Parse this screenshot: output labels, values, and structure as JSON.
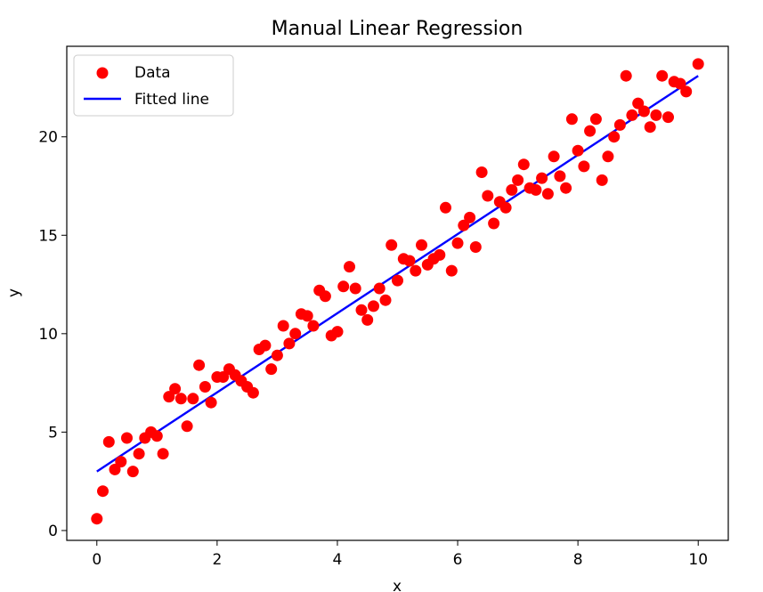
{
  "chart_data": {
    "type": "scatter",
    "title": "Manual Linear Regression",
    "xlabel": "x",
    "ylabel": "y",
    "xlim": [
      -0.5,
      10.5
    ],
    "ylim": [
      -0.5,
      24.6
    ],
    "xticks": [
      0,
      2,
      4,
      6,
      8,
      10
    ],
    "xtick_labels": [
      "0",
      "2",
      "4",
      "6",
      "8",
      "10"
    ],
    "yticks": [
      0,
      5,
      10,
      15,
      20
    ],
    "ytick_labels": [
      "0",
      "5",
      "10",
      "15",
      "20"
    ],
    "grid": false,
    "legend_position": "upper-left",
    "series": [
      {
        "name": "Data",
        "kind": "scatter",
        "color": "#ff0000",
        "points": [
          [
            0.0,
            0.6
          ],
          [
            0.1,
            2.0
          ],
          [
            0.2,
            4.5
          ],
          [
            0.3,
            3.1
          ],
          [
            0.4,
            3.5
          ],
          [
            0.5,
            4.7
          ],
          [
            0.6,
            3.0
          ],
          [
            0.7,
            3.9
          ],
          [
            0.8,
            4.7
          ],
          [
            0.9,
            5.0
          ],
          [
            1.0,
            4.8
          ],
          [
            1.1,
            3.9
          ],
          [
            1.2,
            6.8
          ],
          [
            1.3,
            7.2
          ],
          [
            1.4,
            6.7
          ],
          [
            1.5,
            5.3
          ],
          [
            1.6,
            6.7
          ],
          [
            1.7,
            8.4
          ],
          [
            1.8,
            7.3
          ],
          [
            1.9,
            6.5
          ],
          [
            2.0,
            7.8
          ],
          [
            2.1,
            7.8
          ],
          [
            2.2,
            8.2
          ],
          [
            2.3,
            7.9
          ],
          [
            2.4,
            7.6
          ],
          [
            2.5,
            7.3
          ],
          [
            2.6,
            7.0
          ],
          [
            2.7,
            9.2
          ],
          [
            2.8,
            9.4
          ],
          [
            2.9,
            8.2
          ],
          [
            3.0,
            8.9
          ],
          [
            3.1,
            10.4
          ],
          [
            3.2,
            9.5
          ],
          [
            3.3,
            10.0
          ],
          [
            3.4,
            11.0
          ],
          [
            3.5,
            10.9
          ],
          [
            3.6,
            10.4
          ],
          [
            3.7,
            12.2
          ],
          [
            3.8,
            11.9
          ],
          [
            3.9,
            9.9
          ],
          [
            4.0,
            10.1
          ],
          [
            4.1,
            12.4
          ],
          [
            4.2,
            13.4
          ],
          [
            4.3,
            12.3
          ],
          [
            4.4,
            11.2
          ],
          [
            4.5,
            10.7
          ],
          [
            4.6,
            11.4
          ],
          [
            4.7,
            12.3
          ],
          [
            4.8,
            11.7
          ],
          [
            4.9,
            14.5
          ],
          [
            5.0,
            12.7
          ],
          [
            5.1,
            13.8
          ],
          [
            5.2,
            13.7
          ],
          [
            5.3,
            13.2
          ],
          [
            5.4,
            14.5
          ],
          [
            5.5,
            13.5
          ],
          [
            5.6,
            13.8
          ],
          [
            5.7,
            14.0
          ],
          [
            5.8,
            16.4
          ],
          [
            5.9,
            13.2
          ],
          [
            6.0,
            14.6
          ],
          [
            6.1,
            15.5
          ],
          [
            6.2,
            15.9
          ],
          [
            6.3,
            14.4
          ],
          [
            6.4,
            18.2
          ],
          [
            6.5,
            17.0
          ],
          [
            6.6,
            15.6
          ],
          [
            6.7,
            16.7
          ],
          [
            6.8,
            16.4
          ],
          [
            6.9,
            17.3
          ],
          [
            7.0,
            17.8
          ],
          [
            7.1,
            18.6
          ],
          [
            7.2,
            17.4
          ],
          [
            7.3,
            17.3
          ],
          [
            7.4,
            17.9
          ],
          [
            7.5,
            17.1
          ],
          [
            7.6,
            19.0
          ],
          [
            7.7,
            18.0
          ],
          [
            7.8,
            17.4
          ],
          [
            7.9,
            20.9
          ],
          [
            8.0,
            19.3
          ],
          [
            8.1,
            18.5
          ],
          [
            8.2,
            20.3
          ],
          [
            8.3,
            20.9
          ],
          [
            8.4,
            17.8
          ],
          [
            8.5,
            19.0
          ],
          [
            8.6,
            20.0
          ],
          [
            8.7,
            20.6
          ],
          [
            8.8,
            23.1
          ],
          [
            8.9,
            21.1
          ],
          [
            9.0,
            21.7
          ],
          [
            9.1,
            21.3
          ],
          [
            9.2,
            20.5
          ],
          [
            9.3,
            21.1
          ],
          [
            9.4,
            23.1
          ],
          [
            9.5,
            21.0
          ],
          [
            9.6,
            22.8
          ],
          [
            9.7,
            22.7
          ],
          [
            9.8,
            22.3
          ],
          [
            10.0,
            23.7
          ]
        ]
      },
      {
        "name": "Fitted line",
        "kind": "line",
        "color": "#0000ff",
        "points": [
          [
            0.0,
            3.0
          ],
          [
            10.0,
            23.1
          ]
        ]
      }
    ]
  }
}
